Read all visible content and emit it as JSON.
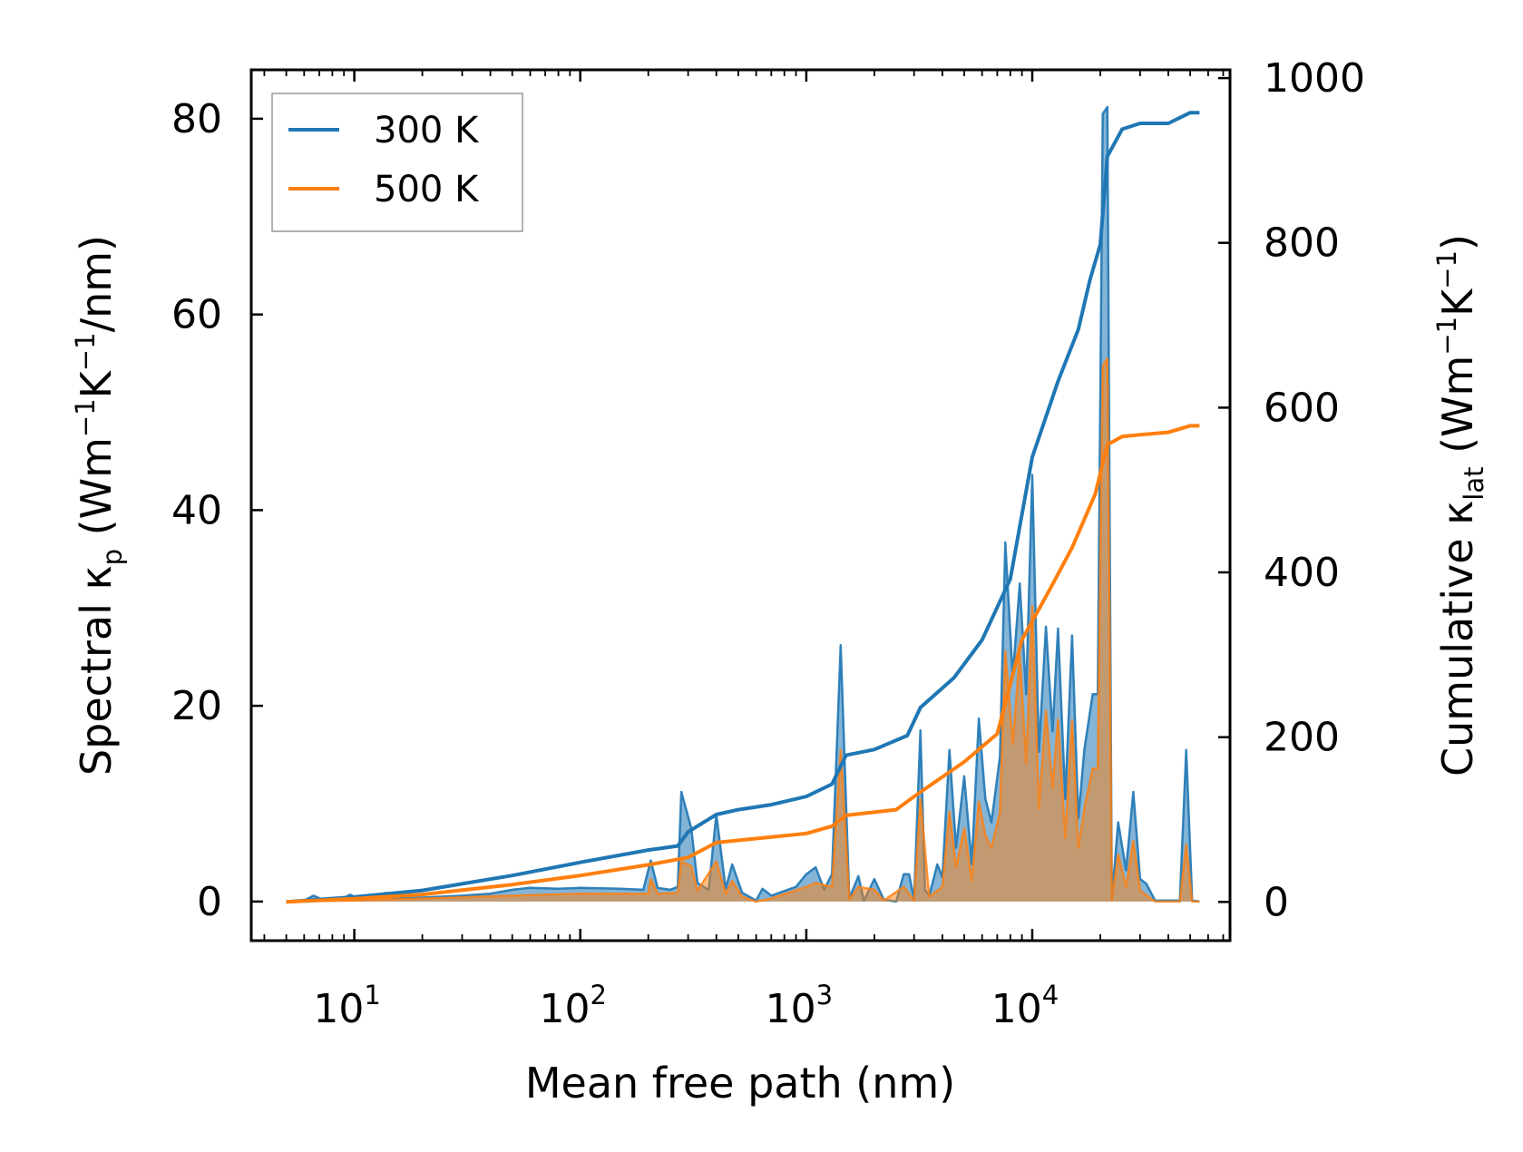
{
  "chart_data": {
    "type": "line",
    "xscale": "log",
    "xlabel": "Mean free path (nm)",
    "xlim": [
      3.5,
      75000
    ],
    "xticks": [
      {
        "value": 10,
        "base": "10",
        "exp": "1"
      },
      {
        "value": 100,
        "base": "10",
        "exp": "2"
      },
      {
        "value": 1000,
        "base": "10",
        "exp": "3"
      },
      {
        "value": 10000,
        "base": "10",
        "exp": "4"
      }
    ],
    "left_axis": {
      "label_prefix": "Spectral κ",
      "label_sub": "p",
      "label_unit_open": " (Wm",
      "label_exp1": "−1",
      "label_mid": "K",
      "label_exp2": "−1",
      "label_tail": "/nm)",
      "ylim": [
        -4,
        85
      ],
      "ticks": [
        0,
        20,
        40,
        60,
        80
      ]
    },
    "right_axis": {
      "label_prefix": "Cumulative κ",
      "label_sub": "lat",
      "label_unit_open": " (Wm",
      "label_exp1": "−1",
      "label_mid": "K",
      "label_exp2": "−1",
      "label_tail": ")",
      "ylim": [
        -47,
        1010
      ],
      "ticks": [
        0,
        200,
        400,
        600,
        800,
        1000
      ]
    },
    "legend": {
      "position": "top-left",
      "entries": [
        {
          "name": "300 K",
          "color": "#1f77b4"
        },
        {
          "name": "500 K",
          "color": "#ff7f0e"
        }
      ]
    },
    "cumulative_series": [
      {
        "name": "300 K",
        "axis": "right",
        "color": "#1f77b4",
        "points": [
          [
            5,
            0
          ],
          [
            10,
            6
          ],
          [
            20,
            14
          ],
          [
            50,
            32
          ],
          [
            100,
            48
          ],
          [
            200,
            63
          ],
          [
            270,
            68
          ],
          [
            300,
            85
          ],
          [
            400,
            106
          ],
          [
            500,
            112
          ],
          [
            700,
            118
          ],
          [
            1000,
            128
          ],
          [
            1300,
            143
          ],
          [
            1500,
            178
          ],
          [
            2000,
            185
          ],
          [
            2800,
            202
          ],
          [
            3200,
            236
          ],
          [
            4500,
            272
          ],
          [
            6000,
            318
          ],
          [
            8000,
            392
          ],
          [
            10000,
            540
          ],
          [
            13000,
            632
          ],
          [
            16000,
            695
          ],
          [
            18000,
            755
          ],
          [
            20000,
            798
          ],
          [
            21500,
            905
          ],
          [
            25000,
            938
          ],
          [
            30000,
            945
          ],
          [
            40000,
            945
          ],
          [
            50000,
            958
          ],
          [
            55000,
            958
          ]
        ]
      },
      {
        "name": "500 K",
        "axis": "right",
        "color": "#ff7f0e",
        "points": [
          [
            5,
            0
          ],
          [
            10,
            4
          ],
          [
            20,
            9
          ],
          [
            50,
            21
          ],
          [
            100,
            32
          ],
          [
            200,
            45
          ],
          [
            300,
            54
          ],
          [
            400,
            72
          ],
          [
            1000,
            83
          ],
          [
            1300,
            92
          ],
          [
            1500,
            105
          ],
          [
            2500,
            112
          ],
          [
            3000,
            128
          ],
          [
            5000,
            170
          ],
          [
            7000,
            204
          ],
          [
            9000,
            318
          ],
          [
            12000,
            380
          ],
          [
            15000,
            430
          ],
          [
            19000,
            495
          ],
          [
            21500,
            555
          ],
          [
            25000,
            565
          ],
          [
            30000,
            567
          ],
          [
            40000,
            570
          ],
          [
            50000,
            578
          ],
          [
            55000,
            578
          ]
        ]
      }
    ],
    "spectral_series": [
      {
        "name": "300 K",
        "axis": "left",
        "color": "#1f77b4",
        "points": [
          [
            5,
            0
          ],
          [
            6,
            0.1
          ],
          [
            6.6,
            0.6
          ],
          [
            7.4,
            0.1
          ],
          [
            8.7,
            0.2
          ],
          [
            9.6,
            0.7
          ],
          [
            10.5,
            0.2
          ],
          [
            12.5,
            0.3
          ],
          [
            13.8,
            0.9
          ],
          [
            15,
            0.3
          ],
          [
            20,
            0.4
          ],
          [
            30,
            0.6
          ],
          [
            40,
            0.8
          ],
          [
            50,
            1.2
          ],
          [
            60,
            1.4
          ],
          [
            80,
            1.3
          ],
          [
            100,
            1.4
          ],
          [
            150,
            1.3
          ],
          [
            190,
            1.2
          ],
          [
            205,
            4.2
          ],
          [
            220,
            1.4
          ],
          [
            250,
            1.2
          ],
          [
            270,
            1.5
          ],
          [
            280,
            11.2
          ],
          [
            310,
            7.5
          ],
          [
            330,
            1.9
          ],
          [
            370,
            1.2
          ],
          [
            400,
            8.9
          ],
          [
            440,
            1.3
          ],
          [
            470,
            3.8
          ],
          [
            520,
            0.9
          ],
          [
            600,
            0.1
          ],
          [
            640,
            1.3
          ],
          [
            700,
            0.6
          ],
          [
            900,
            1.5
          ],
          [
            1000,
            2.8
          ],
          [
            1100,
            3.5
          ],
          [
            1200,
            1.2
          ],
          [
            1300,
            2.8
          ],
          [
            1420,
            26.2
          ],
          [
            1550,
            0.3
          ],
          [
            1700,
            2.6
          ],
          [
            1800,
            0.1
          ],
          [
            2000,
            2.3
          ],
          [
            2200,
            0.2
          ],
          [
            2500,
            0
          ],
          [
            2700,
            2.8
          ],
          [
            2850,
            2.8
          ],
          [
            3000,
            0.2
          ],
          [
            3200,
            17.5
          ],
          [
            3350,
            1.2
          ],
          [
            3500,
            0.6
          ],
          [
            3800,
            3.8
          ],
          [
            4000,
            2.5
          ],
          [
            4300,
            15.5
          ],
          [
            4600,
            5.5
          ],
          [
            5000,
            12.8
          ],
          [
            5400,
            3.8
          ],
          [
            5800,
            18.7
          ],
          [
            6200,
            10.5
          ],
          [
            6600,
            8.1
          ],
          [
            7200,
            14.8
          ],
          [
            7600,
            36.7
          ],
          [
            8200,
            22.9
          ],
          [
            8800,
            32.5
          ],
          [
            9400,
            21.2
          ],
          [
            10000,
            43.6
          ],
          [
            10700,
            15.3
          ],
          [
            11500,
            28.1
          ],
          [
            12300,
            17.4
          ],
          [
            13000,
            27.9
          ],
          [
            14000,
            10.5
          ],
          [
            15000,
            27.2
          ],
          [
            16000,
            8.5
          ],
          [
            17000,
            15.5
          ],
          [
            18500,
            21.2
          ],
          [
            19500,
            21.2
          ],
          [
            20500,
            80.5
          ],
          [
            21500,
            81.2
          ],
          [
            22500,
            0.2
          ],
          [
            24000,
            8.1
          ],
          [
            26000,
            3.2
          ],
          [
            28000,
            11.2
          ],
          [
            30000,
            2.3
          ],
          [
            32000,
            1.8
          ],
          [
            35000,
            0.1
          ],
          [
            45000,
            0.1
          ],
          [
            48000,
            15.5
          ],
          [
            51000,
            0.1
          ],
          [
            55000,
            0
          ]
        ]
      },
      {
        "name": "500 K",
        "axis": "left",
        "color": "#ff7f0e",
        "points": [
          [
            5,
            0
          ],
          [
            10,
            0.1
          ],
          [
            20,
            0.3
          ],
          [
            50,
            0.6
          ],
          [
            100,
            0.8
          ],
          [
            200,
            0.8
          ],
          [
            205,
            2.3
          ],
          [
            220,
            0.8
          ],
          [
            270,
            0.9
          ],
          [
            280,
            4.1
          ],
          [
            310,
            3.6
          ],
          [
            330,
            1.1
          ],
          [
            400,
            4.1
          ],
          [
            440,
            0.8
          ],
          [
            470,
            2.1
          ],
          [
            520,
            0.5
          ],
          [
            600,
            0
          ],
          [
            700,
            0.3
          ],
          [
            1000,
            1.5
          ],
          [
            1100,
            1.9
          ],
          [
            1300,
            1.5
          ],
          [
            1420,
            15.5
          ],
          [
            1550,
            0.2
          ],
          [
            1700,
            1.5
          ],
          [
            2000,
            1.2
          ],
          [
            2200,
            0.1
          ],
          [
            2700,
            1.5
          ],
          [
            3000,
            0.1
          ],
          [
            3200,
            10.5
          ],
          [
            3500,
            0.5
          ],
          [
            4000,
            1.5
          ],
          [
            4300,
            9.2
          ],
          [
            4600,
            3.5
          ],
          [
            5000,
            7.5
          ],
          [
            5400,
            2.1
          ],
          [
            5800,
            10.2
          ],
          [
            6200,
            6.8
          ],
          [
            6600,
            5.5
          ],
          [
            7200,
            9.1
          ],
          [
            7600,
            25.6
          ],
          [
            8200,
            16.1
          ],
          [
            8800,
            25.2
          ],
          [
            9400,
            14.1
          ],
          [
            10000,
            30.2
          ],
          [
            10700,
            9.5
          ],
          [
            11500,
            19.5
          ],
          [
            12300,
            11.6
          ],
          [
            13000,
            18.6
          ],
          [
            14000,
            6.5
          ],
          [
            15000,
            18.5
          ],
          [
            16000,
            5.5
          ],
          [
            17000,
            9.5
          ],
          [
            18500,
            13.6
          ],
          [
            19500,
            13.6
          ],
          [
            20500,
            54.7
          ],
          [
            21500,
            55.5
          ],
          [
            22500,
            0.1
          ],
          [
            24000,
            4.8
          ],
          [
            26000,
            1.5
          ],
          [
            28000,
            6.2
          ],
          [
            30000,
            1.1
          ],
          [
            35000,
            0
          ],
          [
            45000,
            0
          ],
          [
            48000,
            5.8
          ],
          [
            51000,
            0
          ],
          [
            55000,
            0
          ]
        ]
      }
    ]
  }
}
